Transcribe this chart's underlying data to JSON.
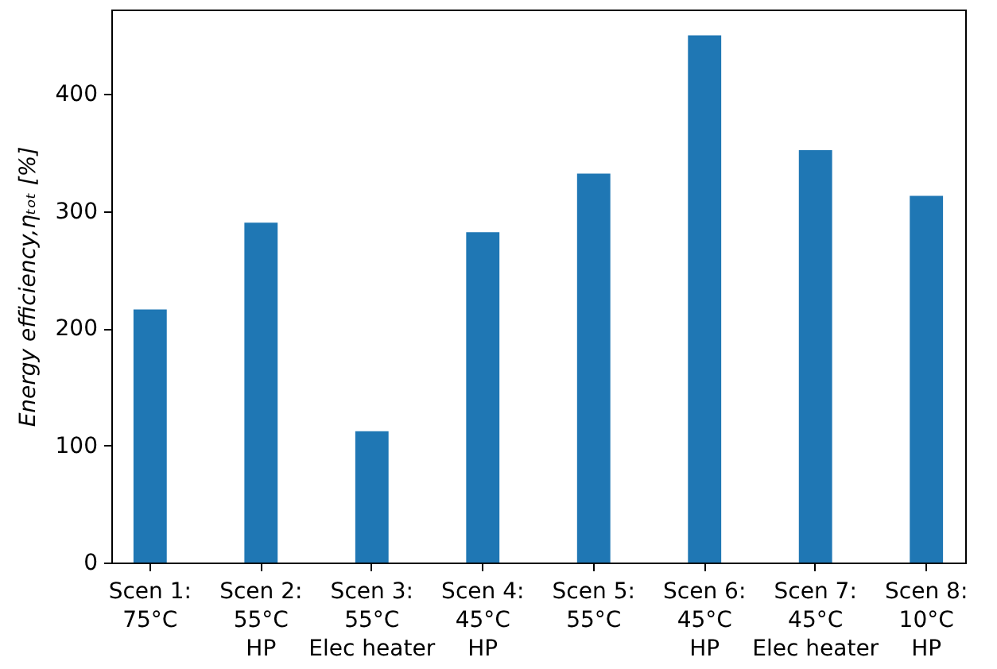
{
  "chart_data": {
    "type": "bar",
    "ylabel": "Energy efficiency,ηₜₒₜ [%]",
    "categories": [
      "Scen 1:\n75°C",
      "Scen 2:\n55°C\nHP",
      "Scen 3:\n55°C\nElec heater",
      "Scen 4:\n45°C\nHP",
      "Scen 5:\n55°C",
      "Scen 6:\n45°C\nHP",
      "Scen 7:\n45°C\nElec heater",
      "Scen 8:\n10°C\nHP"
    ],
    "values": [
      216,
      290,
      112,
      282,
      332,
      450,
      352,
      313
    ],
    "color": "#1f77b4",
    "ylim": [
      0,
      472
    ],
    "yticks": [
      0,
      100,
      200,
      300,
      400
    ],
    "grid": false
  }
}
